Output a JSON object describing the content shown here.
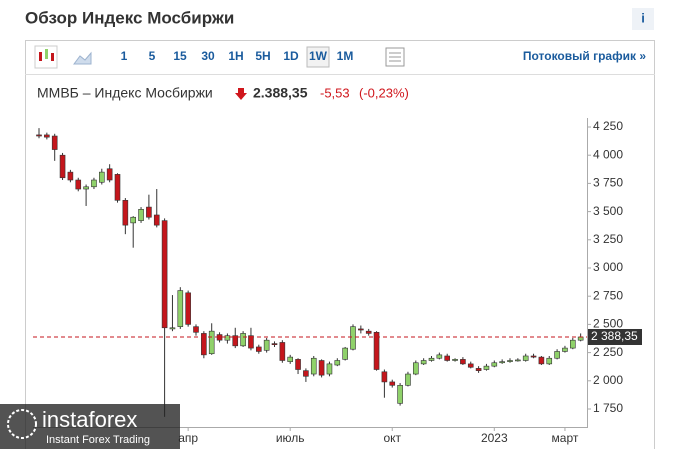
{
  "header": {
    "title": "Обзор Индекс Мосбиржи",
    "info": "i"
  },
  "toolbar": {
    "intervals": [
      "1",
      "5",
      "15",
      "30",
      "1H",
      "5H",
      "1D",
      "1W",
      "1M"
    ],
    "active": "1W",
    "stream_link": "Потоковый график »"
  },
  "quote": {
    "name": "ММВБ – Индекс Мосбиржи",
    "price": "2.388,35",
    "change": "-5,53",
    "change_pct": "(-0,23%)"
  },
  "chart_data": {
    "type": "candlestick",
    "categories": [
      null,
      null,
      null,
      null,
      null,
      null,
      null,
      null,
      null,
      null,
      null,
      null,
      null,
      null,
      null,
      null,
      null,
      null,
      null,
      "апр",
      null,
      null,
      null,
      null,
      null,
      null,
      null,
      null,
      null,
      null,
      null,
      null,
      "июль",
      null,
      null,
      null,
      null,
      null,
      null,
      null,
      null,
      null,
      null,
      null,
      null,
      "окт",
      null,
      null,
      null,
      null,
      null,
      null,
      null,
      null,
      null,
      null,
      null,
      null,
      "2023",
      null,
      null,
      null,
      null,
      null,
      null,
      null,
      null,
      "март",
      null,
      null
    ],
    "open": [
      4180,
      4180,
      4170,
      4000,
      3850,
      3780,
      3700,
      3720,
      3760,
      3880,
      3830,
      3600,
      3400,
      3420,
      3540,
      3470,
      3420,
      2460,
      2480,
      2780,
      2480,
      2420,
      2240,
      2410,
      2360,
      2400,
      2310,
      2400,
      2300,
      2270,
      2330,
      2340,
      2170,
      2190,
      2090,
      2060,
      2180,
      2060,
      2140,
      2190,
      2280,
      2460,
      2440,
      2430,
      2080,
      1990,
      1800,
      1960,
      2060,
      2150,
      2180,
      2200,
      2220,
      2180,
      2190,
      2150,
      2110,
      2100,
      2130,
      2160,
      2170,
      2180,
      2180,
      2220,
      2210,
      2150,
      2200,
      2260,
      2290,
      2360
    ],
    "high": [
      4240,
      4200,
      4190,
      4020,
      3870,
      3800,
      3740,
      3800,
      3880,
      3920,
      3840,
      3620,
      3460,
      3540,
      3650,
      3700,
      3440,
      2760,
      2830,
      2800,
      2500,
      2440,
      2510,
      2430,
      2420,
      2470,
      2440,
      2470,
      2320,
      2380,
      2350,
      2360,
      2230,
      2200,
      2110,
      2220,
      2190,
      2170,
      2200,
      2300,
      2500,
      2490,
      2460,
      2440,
      2100,
      2010,
      1980,
      2080,
      2180,
      2200,
      2220,
      2250,
      2240,
      2200,
      2210,
      2170,
      2130,
      2150,
      2180,
      2190,
      2200,
      2200,
      2240,
      2240,
      2220,
      2220,
      2280,
      2310,
      2380,
      2420
    ],
    "low": [
      4150,
      4140,
      3950,
      3780,
      3760,
      3680,
      3550,
      3700,
      3740,
      3760,
      3580,
      3300,
      3180,
      3400,
      3430,
      3360,
      1680,
      2440,
      2460,
      2480,
      2400,
      2200,
      2230,
      2340,
      2330,
      2290,
      2300,
      2270,
      2240,
      2250,
      2300,
      2160,
      2150,
      2060,
      1990,
      2040,
      2030,
      2040,
      2130,
      2180,
      2270,
      2420,
      2400,
      2090,
      1850,
      1940,
      1780,
      1950,
      2050,
      2140,
      2170,
      2190,
      2170,
      2170,
      2140,
      2110,
      2070,
      2090,
      2120,
      2150,
      2160,
      2170,
      2170,
      2200,
      2140,
      2140,
      2190,
      2250,
      2280,
      2350
    ],
    "close": [
      4170,
      4160,
      4050,
      3800,
      3780,
      3700,
      3720,
      3780,
      3850,
      3780,
      3600,
      3380,
      3450,
      3520,
      3450,
      3380,
      2470,
      2470,
      2800,
      2500,
      2430,
      2230,
      2440,
      2360,
      2400,
      2310,
      2420,
      2290,
      2260,
      2360,
      2320,
      2180,
      2210,
      2100,
      2040,
      2200,
      2050,
      2150,
      2180,
      2290,
      2480,
      2450,
      2420,
      2100,
      1990,
      1960,
      1960,
      2060,
      2160,
      2180,
      2200,
      2230,
      2180,
      2190,
      2150,
      2120,
      2090,
      2130,
      2160,
      2170,
      2180,
      2185,
      2220,
      2210,
      2150,
      2200,
      2260,
      2290,
      2360,
      2388.35
    ],
    "up_color": "#8fd16a",
    "down_color": "#c4161c",
    "ylim": [
      1600,
      4350
    ],
    "yticks": [
      {
        "value": 1750,
        "label": "1 750"
      },
      {
        "value": 2000,
        "label": "2 000"
      },
      {
        "value": 2250,
        "label": "2 250"
      },
      {
        "value": 2500,
        "label": "2 500"
      },
      {
        "value": 2750,
        "label": "2 750"
      },
      {
        "value": 3000,
        "label": "3 000"
      },
      {
        "value": 3250,
        "label": "3 250"
      },
      {
        "value": 3500,
        "label": "3 500"
      },
      {
        "value": 3750,
        "label": "3 750"
      },
      {
        "value": 4000,
        "label": "4 000"
      },
      {
        "value": 4250,
        "label": "4 250"
      }
    ],
    "last_price": {
      "value": 2388.35,
      "label": "2 388,35"
    }
  },
  "watermark": {
    "brand": "instaforex",
    "tagline": "Instant Forex Trading"
  }
}
